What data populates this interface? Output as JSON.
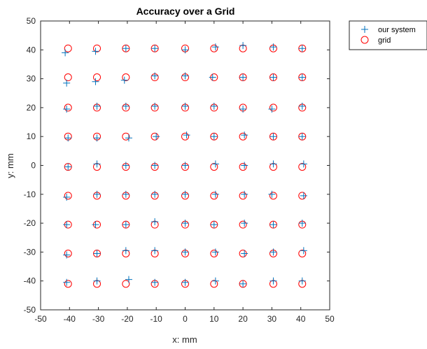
{
  "chart_data": {
    "type": "scatter",
    "title": "Accuracy over a Grid",
    "xlabel": "x: mm",
    "ylabel": "y: mm",
    "xlim": [
      -50,
      50
    ],
    "ylim": [
      -50,
      50
    ],
    "xticks": [
      -50,
      -40,
      -30,
      -20,
      -10,
      0,
      10,
      20,
      30,
      40,
      50
    ],
    "yticks": [
      -50,
      -40,
      -30,
      -20,
      -10,
      0,
      10,
      20,
      30,
      40,
      50
    ],
    "grid": false,
    "legend_position": "outside-top-right",
    "series": [
      {
        "name": "our system",
        "marker": "plus",
        "color": "#0072BD",
        "points": [
          [
            -41.5,
            39
          ],
          [
            -31,
            39.5
          ],
          [
            -20.5,
            40.5
          ],
          [
            -10.5,
            40.5
          ],
          [
            0,
            40
          ],
          [
            10.5,
            41
          ],
          [
            20,
            41.5
          ],
          [
            30.5,
            41
          ],
          [
            40.5,
            40.5
          ],
          [
            -41,
            28.5
          ],
          [
            -31,
            29
          ],
          [
            -21,
            29.5
          ],
          [
            -10.5,
            31
          ],
          [
            0,
            31
          ],
          [
            9.5,
            30.5
          ],
          [
            20,
            30.5
          ],
          [
            30.5,
            30.5
          ],
          [
            40.5,
            30.5
          ],
          [
            -41,
            19.5
          ],
          [
            -30.5,
            20.5
          ],
          [
            -20.5,
            20.5
          ],
          [
            -10.5,
            20.5
          ],
          [
            0,
            20.5
          ],
          [
            10,
            20.5
          ],
          [
            20,
            19.5
          ],
          [
            30,
            19.5
          ],
          [
            40.5,
            20.5
          ],
          [
            -40.5,
            9.5
          ],
          [
            -30.5,
            9.5
          ],
          [
            -19.5,
            9.5
          ],
          [
            -10,
            10
          ],
          [
            0.5,
            10.5
          ],
          [
            10,
            10
          ],
          [
            20.5,
            10.5
          ],
          [
            30.5,
            10
          ],
          [
            40.5,
            10
          ],
          [
            -40.5,
            -0.5
          ],
          [
            -30.5,
            0.5
          ],
          [
            -20.5,
            0
          ],
          [
            -10.5,
            0
          ],
          [
            0,
            0
          ],
          [
            10.5,
            0.5
          ],
          [
            20.5,
            0
          ],
          [
            30.5,
            0.5
          ],
          [
            41,
            0.5
          ],
          [
            -41,
            -11
          ],
          [
            -30.5,
            -10
          ],
          [
            -20.5,
            -10
          ],
          [
            -10.5,
            -10
          ],
          [
            0,
            -10
          ],
          [
            10.5,
            -10
          ],
          [
            20.5,
            -10
          ],
          [
            30,
            -10
          ],
          [
            41,
            -10.5
          ],
          [
            -41,
            -20.5
          ],
          [
            -31,
            -20.5
          ],
          [
            -20.5,
            -20.5
          ],
          [
            -10.5,
            -19.5
          ],
          [
            0,
            -20
          ],
          [
            10,
            -20.5
          ],
          [
            20.5,
            -20
          ],
          [
            30.5,
            -20.5
          ],
          [
            40.5,
            -20
          ],
          [
            -41,
            -31
          ],
          [
            -30.5,
            -30.5
          ],
          [
            -20.5,
            -29.5
          ],
          [
            -10.5,
            -29.5
          ],
          [
            0,
            -30
          ],
          [
            10.5,
            -30
          ],
          [
            20.5,
            -30.5
          ],
          [
            30.5,
            -30
          ],
          [
            41,
            -29.5
          ],
          [
            -41,
            -40.5
          ],
          [
            -30.5,
            -40
          ],
          [
            -19.5,
            -39.5
          ],
          [
            -10.5,
            -40.5
          ],
          [
            0,
            -40.5
          ],
          [
            10.5,
            -40
          ],
          [
            20,
            -41
          ],
          [
            30.5,
            -40
          ],
          [
            40.5,
            -40
          ]
        ]
      },
      {
        "name": "grid",
        "marker": "circle",
        "color": "#FF0000",
        "points": [
          [
            -40.5,
            40.5
          ],
          [
            -30.5,
            40.5
          ],
          [
            -20.5,
            40.5
          ],
          [
            -10.5,
            40.5
          ],
          [
            0,
            40.5
          ],
          [
            10,
            40.5
          ],
          [
            20,
            40.5
          ],
          [
            30.5,
            40.5
          ],
          [
            40.5,
            40.5
          ],
          [
            -40.5,
            30.5
          ],
          [
            -30.5,
            30.5
          ],
          [
            -20.5,
            30.5
          ],
          [
            -10.5,
            30.5
          ],
          [
            0,
            30.5
          ],
          [
            10,
            30.5
          ],
          [
            20,
            30.5
          ],
          [
            30.5,
            30.5
          ],
          [
            40.5,
            30.5
          ],
          [
            -40.5,
            20
          ],
          [
            -30.5,
            20
          ],
          [
            -20.5,
            20
          ],
          [
            -10.5,
            20
          ],
          [
            0,
            20
          ],
          [
            10,
            20
          ],
          [
            20,
            20
          ],
          [
            30.5,
            20
          ],
          [
            40.5,
            20
          ],
          [
            -40.5,
            10
          ],
          [
            -30.5,
            10
          ],
          [
            -20.5,
            10
          ],
          [
            -10.5,
            10
          ],
          [
            0,
            10
          ],
          [
            10,
            10
          ],
          [
            20,
            10
          ],
          [
            30.5,
            10
          ],
          [
            40.5,
            10
          ],
          [
            -40.5,
            -0.5
          ],
          [
            -30.5,
            -0.5
          ],
          [
            -20.5,
            -0.5
          ],
          [
            -10.5,
            -0.5
          ],
          [
            0,
            -0.5
          ],
          [
            10,
            -0.5
          ],
          [
            20,
            -0.5
          ],
          [
            30.5,
            -0.5
          ],
          [
            40.5,
            -0.5
          ],
          [
            -40.5,
            -10.5
          ],
          [
            -30.5,
            -10.5
          ],
          [
            -20.5,
            -10.5
          ],
          [
            -10.5,
            -10.5
          ],
          [
            0,
            -10.5
          ],
          [
            10,
            -10.5
          ],
          [
            20,
            -10.5
          ],
          [
            30.5,
            -10.5
          ],
          [
            40.5,
            -10.5
          ],
          [
            -40.5,
            -20.5
          ],
          [
            -30.5,
            -20.5
          ],
          [
            -20.5,
            -20.5
          ],
          [
            -10.5,
            -20.5
          ],
          [
            0,
            -20.5
          ],
          [
            10,
            -20.5
          ],
          [
            20,
            -20.5
          ],
          [
            30.5,
            -20.5
          ],
          [
            40.5,
            -20.5
          ],
          [
            -40.5,
            -30.5
          ],
          [
            -30.5,
            -30.5
          ],
          [
            -20.5,
            -30.5
          ],
          [
            -10.5,
            -30.5
          ],
          [
            0,
            -30.5
          ],
          [
            10,
            -30.5
          ],
          [
            20,
            -30.5
          ],
          [
            30.5,
            -30.5
          ],
          [
            40.5,
            -30.5
          ],
          [
            -40.5,
            -41
          ],
          [
            -30.5,
            -41
          ],
          [
            -20.5,
            -41
          ],
          [
            -10.5,
            -41
          ],
          [
            0,
            -41
          ],
          [
            10,
            -41
          ],
          [
            20,
            -41
          ],
          [
            30.5,
            -41
          ],
          [
            40.5,
            -41
          ]
        ]
      }
    ]
  }
}
